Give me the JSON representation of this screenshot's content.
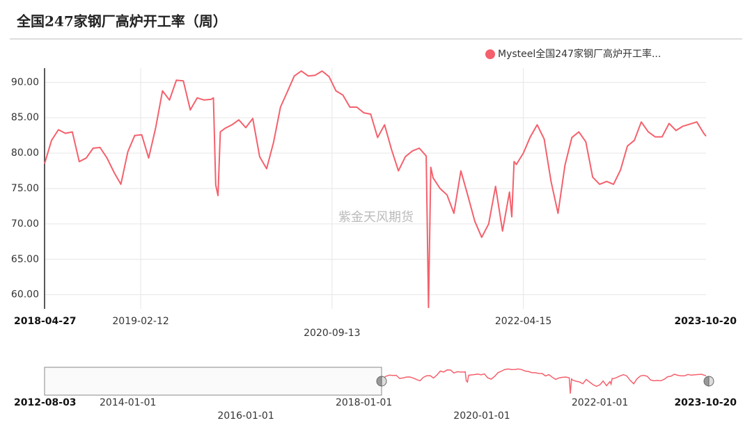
{
  "chart_data": {
    "type": "line",
    "title": "全国247家钢厂高炉开工率（周）",
    "watermark": "紫金天风期货",
    "legend": "top-right",
    "grid": true,
    "x": [
      "2018-04-27",
      "2018-05-18",
      "2018-06-08",
      "2018-06-29",
      "2018-07-20",
      "2018-08-10",
      "2018-08-31",
      "2018-09-21",
      "2018-10-12",
      "2018-11-02",
      "2018-11-23",
      "2018-12-14",
      "2019-01-04",
      "2019-01-25",
      "2019-02-15",
      "2019-03-08",
      "2019-03-29",
      "2019-04-19",
      "2019-05-10",
      "2019-05-31",
      "2019-06-21",
      "2019-07-12",
      "2019-08-02",
      "2019-08-23",
      "2019-09-13",
      "2019-09-20",
      "2019-09-27",
      "2019-10-04",
      "2019-10-11",
      "2019-10-25",
      "2019-11-15",
      "2019-12-06",
      "2019-12-27",
      "2020-01-17",
      "2020-02-07",
      "2020-02-28",
      "2020-03-20",
      "2020-04-10",
      "2020-05-01",
      "2020-05-22",
      "2020-06-12",
      "2020-07-03",
      "2020-07-24",
      "2020-08-14",
      "2020-09-04",
      "2020-09-25",
      "2020-10-16",
      "2020-11-06",
      "2020-11-27",
      "2020-12-18",
      "2021-01-08",
      "2021-01-29",
      "2021-02-19",
      "2021-03-12",
      "2021-04-02",
      "2021-04-23",
      "2021-05-14",
      "2021-06-04",
      "2021-06-25",
      "2021-07-02",
      "2021-07-09",
      "2021-07-16",
      "2021-08-06",
      "2021-08-27",
      "2021-09-17",
      "2021-10-08",
      "2021-10-29",
      "2021-11-19",
      "2021-12-10",
      "2021-12-31",
      "2022-01-21",
      "2022-02-11",
      "2022-03-04",
      "2022-03-11",
      "2022-03-18",
      "2022-03-25",
      "2022-04-15",
      "2022-05-06",
      "2022-05-27",
      "2022-06-17",
      "2022-07-08",
      "2022-07-29",
      "2022-08-19",
      "2022-09-09",
      "2022-09-30",
      "2022-10-21",
      "2022-11-11",
      "2022-12-02",
      "2022-12-23",
      "2023-01-13",
      "2023-02-03",
      "2023-02-24",
      "2023-03-17",
      "2023-04-07",
      "2023-04-28",
      "2023-05-19",
      "2023-06-09",
      "2023-06-30",
      "2023-07-21",
      "2023-08-11",
      "2023-09-01",
      "2023-09-22",
      "2023-10-13",
      "2023-10-20"
    ],
    "series": [
      {
        "name": "Mysteel全国247家钢厂高炉开工率...",
        "color": "#f4606c",
        "values": [
          78.5,
          81.8,
          83.3,
          82.8,
          83,
          78.8,
          79.3,
          80.7,
          80.8,
          79.3,
          77.3,
          75.6,
          80.2,
          82.5,
          82.6,
          79.3,
          83.5,
          88.8,
          87.5,
          90.3,
          90.2,
          86.1,
          87.8,
          87.5,
          87.6,
          87.8,
          75.5,
          74,
          83,
          83.5,
          84,
          84.7,
          83.6,
          84.9,
          79.5,
          77.8,
          81.5,
          86.5,
          88.7,
          90.9,
          91.6,
          90.9,
          91,
          91.6,
          90.8,
          88.8,
          88.2,
          86.5,
          86.5,
          85.7,
          85.5,
          82.2,
          84,
          80.5,
          77.5,
          79.5,
          80.3,
          80.7,
          79.6,
          58.2,
          78,
          76.5,
          75,
          74.1,
          71.5,
          77.5,
          74,
          70.4,
          68.1,
          70,
          75.3,
          69,
          74.5,
          71,
          78.8,
          78.4,
          80,
          82.3,
          84,
          82,
          76,
          71.5,
          78.3,
          82.2,
          83,
          81.6,
          76.6,
          75.6,
          76,
          75.6,
          77.6,
          81,
          81.8,
          84.4,
          83,
          82.3,
          82.3,
          84.2,
          83.2,
          83.8,
          84.1,
          84.4,
          82.8,
          82.4
        ]
      }
    ],
    "xlim": [
      "2018-04-27",
      "2023-10-20"
    ],
    "xticks": [
      "2018-04-27",
      "2019-02-12",
      "2020-09-13",
      "2022-04-15",
      "2023-10-20"
    ],
    "ylim": [
      58,
      92
    ],
    "yticks": [
      {
        "value": 60,
        "label": "60.00"
      },
      {
        "value": 65,
        "label": "65.00"
      },
      {
        "value": 70,
        "label": "70.00"
      },
      {
        "value": 75,
        "label": "75.00"
      },
      {
        "value": 80,
        "label": "80.00"
      },
      {
        "value": 85,
        "label": "85.00"
      },
      {
        "value": 90,
        "label": "90.00"
      }
    ],
    "navigator": {
      "xlim": [
        "2012-08-03",
        "2023-10-20"
      ],
      "xticks": [
        "2012-08-03",
        "2014-01-01",
        "2016-01-01",
        "2018-01-01",
        "2020-01-01",
        "2022-01-01",
        "2023-10-20"
      ]
    }
  }
}
